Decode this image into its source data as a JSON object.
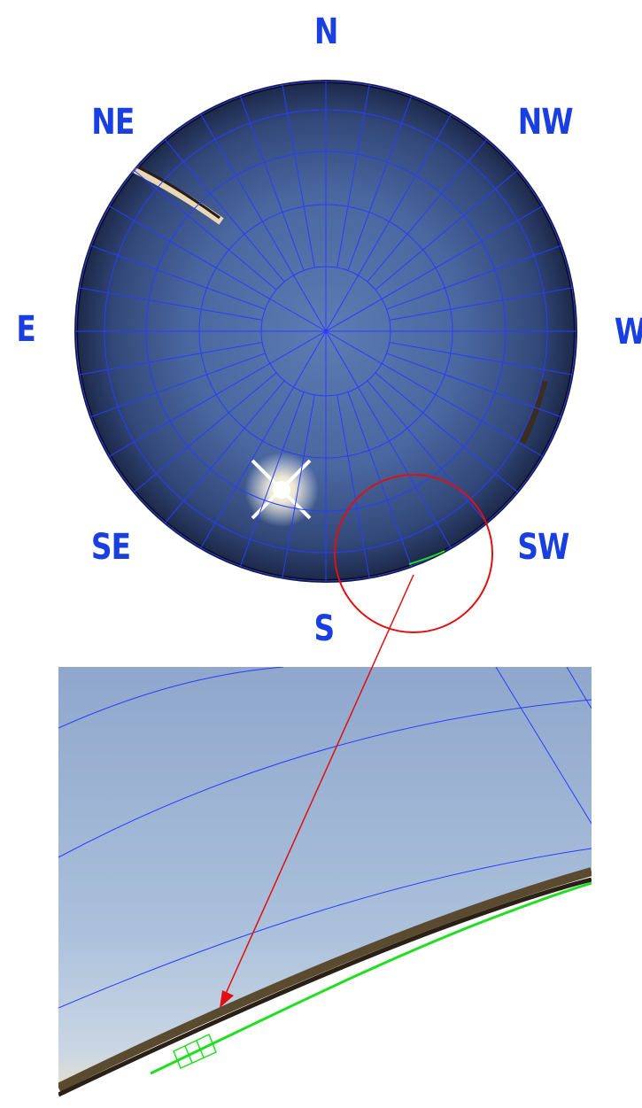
{
  "compass": {
    "n": "N",
    "ne": "NE",
    "nw": "NW",
    "e": "E",
    "w": "W",
    "se": "SE",
    "sw": "SW",
    "s": "S"
  },
  "colors": {
    "label": "#1a3fe0",
    "grid": "#2233ff",
    "highlight_circle": "#e01010",
    "arrow": "#e01010",
    "horizon_mask": "#22dd22",
    "sky_center": "#4f6fa8",
    "sky_edge": "#1c2d55",
    "zoom_sky": "#a9bdd6"
  }
}
